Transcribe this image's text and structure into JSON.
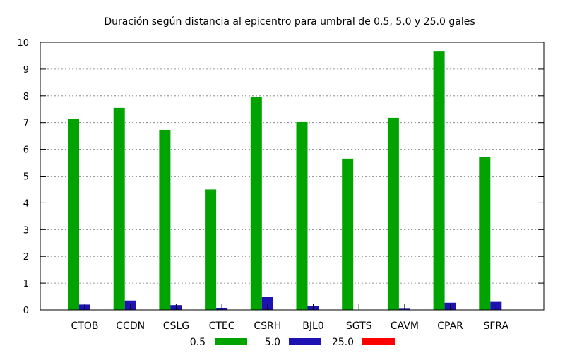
{
  "chart_data": {
    "type": "bar",
    "title": "Duración según distancia al epicentro para umbral de 0.5, 5.0 y 25.0 gales",
    "xlabel": "",
    "ylabel": "",
    "ylim": [
      0,
      10
    ],
    "yticks": [
      "0",
      "1",
      "2",
      "3",
      "4",
      "5",
      "6",
      "7",
      "8",
      "9",
      "10"
    ],
    "grid": true,
    "legend_position": "bottom",
    "categories": [
      "CTOB",
      "CCDN",
      "CSLG",
      "CTEC",
      "CSRH",
      "BJL0",
      "SGTS",
      "CAVM",
      "CPAR",
      "SFRA"
    ],
    "series": [
      {
        "name": "0.5",
        "color": "#00a300",
        "values": [
          7.15,
          7.55,
          6.73,
          4.5,
          7.95,
          7.02,
          5.65,
          7.18,
          9.68,
          5.72
        ]
      },
      {
        "name": "5.0",
        "color": "#1f12b3",
        "values": [
          0.2,
          0.35,
          0.18,
          0.08,
          0.48,
          0.14,
          0.0,
          0.07,
          0.27,
          0.3
        ]
      },
      {
        "name": "25.0",
        "color": "#ff0000",
        "values": [
          0,
          0,
          0,
          0,
          0,
          0,
          0,
          0,
          0,
          0
        ]
      }
    ]
  }
}
